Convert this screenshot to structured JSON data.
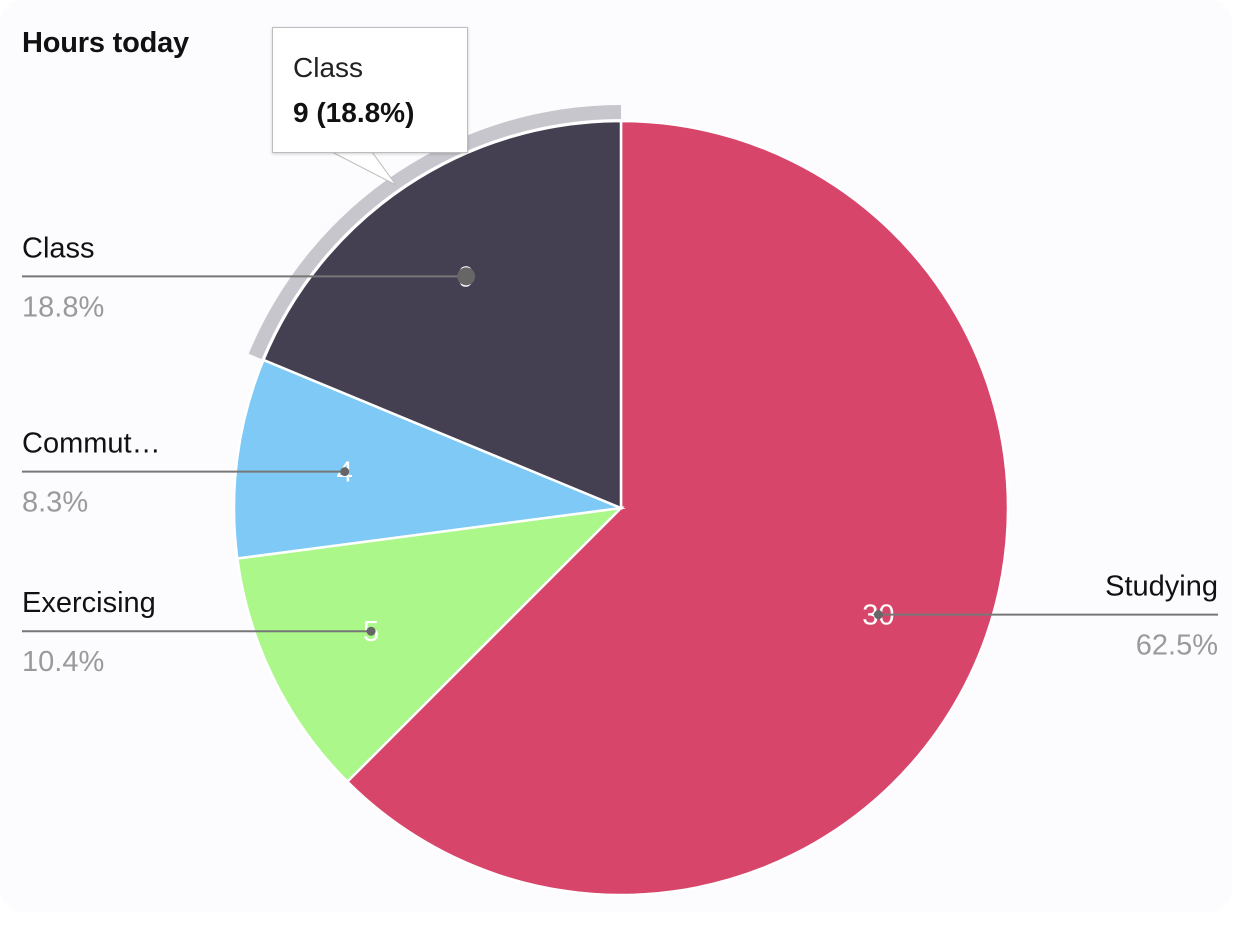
{
  "chart_data": {
    "type": "pie",
    "title": "Hours today",
    "slices": [
      {
        "label": "Studying",
        "value": 30,
        "percent": "62.5%",
        "color": "#d8456b"
      },
      {
        "label": "Exercising",
        "value": 5,
        "percent": "10.4%",
        "color": "#abf789"
      },
      {
        "label": "Commut…",
        "value": 4,
        "percent": "8.3%",
        "color": "#7ec9f5"
      },
      {
        "label": "Class",
        "value": 9,
        "percent": "18.8%",
        "color": "#443f51"
      }
    ],
    "highlighted_slice": "Class",
    "tooltip": {
      "label": "Class",
      "value": "9 (18.8%)"
    }
  }
}
